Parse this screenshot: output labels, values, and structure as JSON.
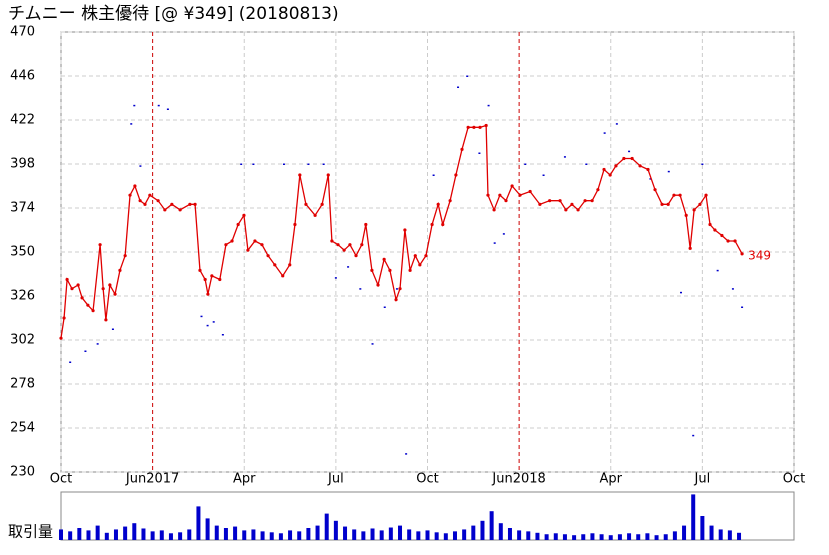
{
  "chart_data": {
    "type": "line",
    "title": "チムニー 株主優待 [@ ¥349] (20180813)",
    "xlim": [
      0,
      24
    ],
    "xticks": [
      {
        "value": 0,
        "label": "Oct"
      },
      {
        "value": 3,
        "label": "Jun2017"
      },
      {
        "value": 6,
        "label": "Apr"
      },
      {
        "value": 9,
        "label": "Jul"
      },
      {
        "value": 12,
        "label": "Oct"
      },
      {
        "value": 15,
        "label": "Jun2018"
      },
      {
        "value": 18,
        "label": "Apr"
      },
      {
        "value": 21,
        "label": "Jul"
      },
      {
        "value": 24,
        "label": "Oct"
      }
    ],
    "ylim": [
      230,
      470
    ],
    "yticks": [
      230,
      254,
      278,
      302,
      326,
      350,
      374,
      398,
      422,
      446,
      470
    ],
    "grid": true,
    "divider_color": "#cc0000",
    "series": [
      {
        "color": "#e00000",
        "x": [
          0,
          0.1,
          0.2,
          0.36,
          0.56,
          0.69,
          0.88,
          1.05,
          1.28,
          1.38,
          1.47,
          1.6,
          1.77,
          1.93,
          2.1,
          2.26,
          2.42,
          2.59,
          2.75,
          2.91,
          3.18,
          3.4,
          3.63,
          3.9,
          4.22,
          4.39,
          4.55,
          4.72,
          4.81,
          4.94,
          5.2,
          5.4,
          5.6,
          5.8,
          5.99,
          6.12,
          6.35,
          6.58,
          6.78,
          7.0,
          7.26,
          7.49,
          7.66,
          7.82,
          8.02,
          8.32,
          8.55,
          8.75,
          8.87,
          9.07,
          9.27,
          9.46,
          9.66,
          9.85,
          9.98,
          10.18,
          10.38,
          10.58,
          10.77,
          10.97,
          11.1,
          11.26,
          11.43,
          11.6,
          11.75,
          11.95,
          12.15,
          12.35,
          12.5,
          12.74,
          12.93,
          13.13,
          13.33,
          13.52,
          13.72,
          13.92,
          13.98,
          14.18,
          14.37,
          14.57,
          14.77,
          15.03,
          15.36,
          15.68,
          16.0,
          16.34,
          16.53,
          16.73,
          16.93,
          17.16,
          17.39,
          17.58,
          17.78,
          17.98,
          18.17,
          18.43,
          18.7,
          18.96,
          19.22,
          19.45,
          19.68,
          19.88,
          20.07,
          20.27,
          20.47,
          20.6,
          20.73,
          20.92,
          21.12,
          21.25,
          21.41,
          21.64,
          21.84,
          22.07,
          22.3
        ],
        "values": [
          303,
          314,
          335,
          330,
          332,
          325,
          321,
          318,
          354,
          330,
          313,
          332,
          327,
          340,
          348,
          381,
          386,
          378,
          376,
          381,
          378,
          373,
          376,
          373,
          376,
          376,
          340,
          335,
          327,
          337,
          335,
          354,
          356,
          365,
          370,
          351,
          356,
          354,
          348,
          343,
          337,
          343,
          365,
          392,
          376,
          370,
          376,
          392,
          356,
          354,
          351,
          354,
          348,
          354,
          365,
          340,
          332,
          346,
          340,
          324,
          330,
          362,
          340,
          348,
          343,
          348,
          365,
          376,
          365,
          378,
          392,
          406,
          418,
          418,
          418,
          419,
          381,
          373,
          381,
          378,
          386,
          381,
          383,
          376,
          378,
          378,
          373,
          376,
          373,
          378,
          378,
          384,
          395,
          392,
          397,
          401,
          401,
          397,
          395,
          384,
          376,
          376,
          381,
          381,
          370,
          352,
          373,
          376,
          381,
          365,
          362,
          359,
          356,
          356,
          349
        ]
      }
    ],
    "end_label": 349,
    "trades": {
      "color": "#0000cc",
      "x": [
        0.3,
        0.8,
        1.2,
        1.7,
        2.3,
        2.4,
        2.6,
        3.2,
        3.5,
        4.6,
        4.8,
        5.0,
        5.3,
        5.9,
        6.3,
        7.3,
        8.1,
        8.6,
        9.0,
        9.4,
        9.8,
        10.2,
        10.6,
        11.0,
        11.3,
        12.2,
        13.0,
        13.3,
        13.7,
        14.0,
        14.2,
        14.5,
        15.2,
        15.8,
        16.5,
        17.2,
        17.8,
        18.2,
        18.6,
        19.3,
        19.9,
        20.3,
        20.7,
        21.0,
        21.5,
        22.0,
        22.3
      ],
      "values": [
        290,
        296,
        300,
        308,
        420,
        430,
        397,
        430,
        428,
        315,
        310,
        312,
        305,
        398,
        398,
        398,
        398,
        398,
        336,
        342,
        330,
        300,
        320,
        330,
        240,
        392,
        440,
        446,
        404,
        430,
        355,
        360,
        398,
        392,
        402,
        398,
        415,
        420,
        405,
        390,
        394,
        328,
        250,
        398,
        340,
        330,
        320
      ]
    },
    "volume_label": "取引量",
    "volume": {
      "color": "#0000cc",
      "ylim": [
        0,
        100
      ],
      "x": [
        0,
        0.3,
        0.6,
        0.9,
        1.2,
        1.5,
        1.8,
        2.1,
        2.4,
        2.7,
        3.0,
        3.3,
        3.6,
        3.9,
        4.2,
        4.5,
        4.8,
        5.1,
        5.4,
        5.7,
        6.0,
        6.3,
        6.6,
        6.9,
        7.2,
        7.5,
        7.8,
        8.1,
        8.4,
        8.7,
        9.0,
        9.3,
        9.6,
        9.9,
        10.2,
        10.5,
        10.8,
        11.1,
        11.4,
        11.7,
        12.0,
        12.3,
        12.6,
        12.9,
        13.2,
        13.5,
        13.8,
        14.1,
        14.4,
        14.7,
        15.0,
        15.3,
        15.6,
        15.9,
        16.2,
        16.5,
        16.8,
        17.1,
        17.4,
        17.7,
        18.0,
        18.3,
        18.6,
        18.9,
        19.2,
        19.5,
        19.8,
        20.1,
        20.4,
        20.7,
        21.0,
        21.3,
        21.6,
        21.9,
        22.2
      ],
      "values": [
        22,
        18,
        25,
        20,
        30,
        15,
        22,
        28,
        35,
        24,
        18,
        20,
        14,
        16,
        22,
        70,
        45,
        30,
        25,
        28,
        20,
        22,
        18,
        16,
        14,
        20,
        18,
        25,
        30,
        55,
        40,
        28,
        22,
        18,
        24,
        20,
        26,
        30,
        22,
        18,
        20,
        16,
        14,
        18,
        22,
        30,
        40,
        60,
        35,
        25,
        20,
        18,
        15,
        12,
        14,
        12,
        10,
        12,
        14,
        12,
        10,
        12,
        14,
        12,
        14,
        10,
        12,
        18,
        30,
        95,
        50,
        30,
        22,
        20,
        15
      ]
    }
  }
}
